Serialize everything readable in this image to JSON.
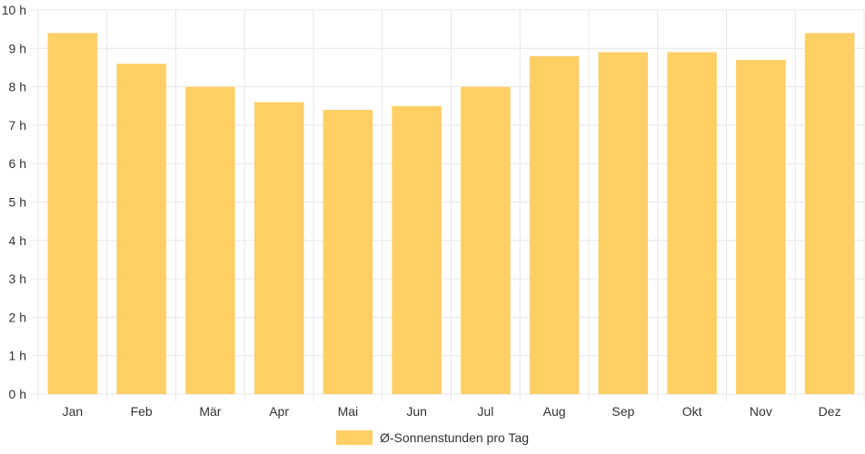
{
  "chart_data": {
    "type": "bar",
    "categories": [
      "Jan",
      "Feb",
      "Mär",
      "Apr",
      "Mai",
      "Jun",
      "Jul",
      "Aug",
      "Sep",
      "Okt",
      "Nov",
      "Dez"
    ],
    "series": [
      {
        "name": "Ø-Sonnenstunden pro Tag",
        "values": [
          9.4,
          8.6,
          8.0,
          7.6,
          7.4,
          7.5,
          8.0,
          8.8,
          8.9,
          8.9,
          8.7,
          9.4
        ]
      }
    ],
    "ylim": [
      0,
      10
    ],
    "yticks": [
      "0 h",
      "1 h",
      "2 h",
      "3 h",
      "4 h",
      "5 h",
      "6 h",
      "7 h",
      "8 h",
      "9 h",
      "10 h"
    ],
    "grid": true,
    "legend_position": "bottom",
    "colors": {
      "bar": "#FECF65",
      "grid": "#e5e5e5",
      "text": "#333333"
    }
  }
}
